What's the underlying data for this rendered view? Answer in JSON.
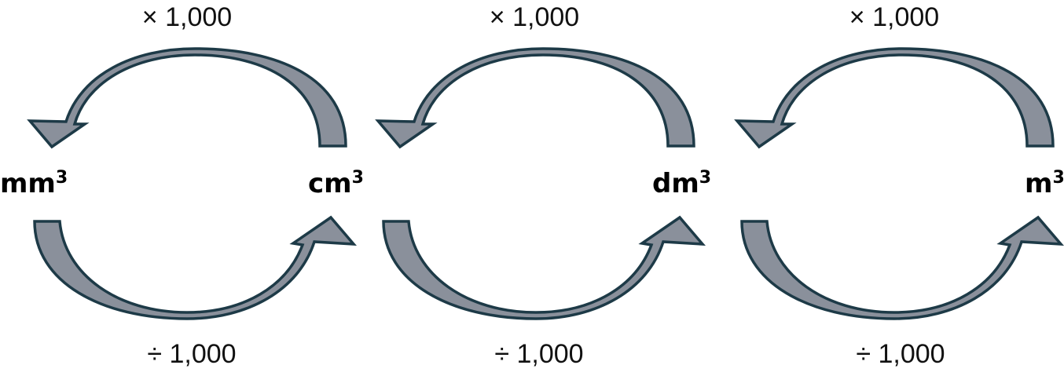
{
  "units": [
    {
      "base": "mm",
      "exp": "3"
    },
    {
      "base": "cm",
      "exp": "3"
    },
    {
      "base": "dm",
      "exp": "3"
    },
    {
      "base": "m",
      "exp": "3"
    }
  ],
  "conversions": [
    {
      "from": "cm³",
      "to": "mm³",
      "label": "× 1,000"
    },
    {
      "from": "dm³",
      "to": "cm³",
      "label": "× 1,000"
    },
    {
      "from": "m³",
      "to": "dm³",
      "label": "× 1,000"
    },
    {
      "from": "mm³",
      "to": "cm³",
      "label": "÷ 1,000"
    },
    {
      "from": "cm³",
      "to": "dm³",
      "label": "÷ 1,000"
    },
    {
      "from": "dm³",
      "to": "m³",
      "label": "÷ 1,000"
    }
  ]
}
